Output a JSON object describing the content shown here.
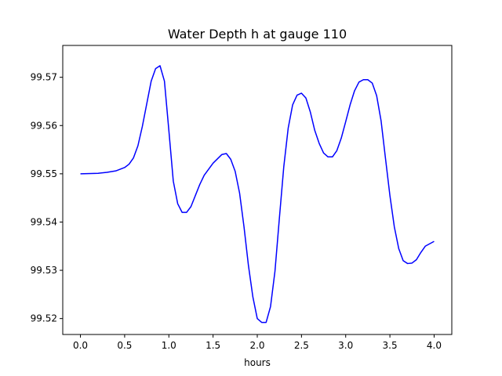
{
  "chart_data": {
    "type": "line",
    "title": "Water Depth h at gauge 110",
    "xlabel": "hours",
    "ylabel": "",
    "xlim": [
      -0.2,
      4.2
    ],
    "ylim": [
      99.5167,
      99.5766
    ],
    "xticks": [
      0.0,
      0.5,
      1.0,
      1.5,
      2.0,
      2.5,
      3.0,
      3.5,
      4.0
    ],
    "xtick_labels": [
      "0.0",
      "0.5",
      "1.0",
      "1.5",
      "2.0",
      "2.5",
      "3.0",
      "3.5",
      "4.0"
    ],
    "yticks": [
      99.52,
      99.53,
      99.54,
      99.55,
      99.56,
      99.57
    ],
    "ytick_labels": [
      "99.52",
      "99.53",
      "99.54",
      "99.55",
      "99.56",
      "99.57"
    ],
    "grid": false,
    "series": [
      {
        "color": "#0000ff",
        "x": [
          0.0,
          0.2,
          0.3,
          0.4,
          0.5,
          0.55,
          0.6,
          0.65,
          0.7,
          0.75,
          0.8,
          0.85,
          0.9,
          0.95,
          1.0,
          1.05,
          1.1,
          1.15,
          1.2,
          1.25,
          1.3,
          1.35,
          1.4,
          1.5,
          1.6,
          1.65,
          1.7,
          1.75,
          1.8,
          1.85,
          1.9,
          1.95,
          2.0,
          2.05,
          2.1,
          2.15,
          2.2,
          2.25,
          2.3,
          2.35,
          2.4,
          2.45,
          2.5,
          2.55,
          2.6,
          2.65,
          2.7,
          2.75,
          2.8,
          2.85,
          2.9,
          2.95,
          3.0,
          3.05,
          3.1,
          3.15,
          3.2,
          3.25,
          3.3,
          3.35,
          3.4,
          3.45,
          3.5,
          3.55,
          3.6,
          3.65,
          3.7,
          3.75,
          3.8,
          3.85,
          3.9,
          4.0
        ],
        "y": [
          99.55,
          99.5501,
          99.5503,
          99.5506,
          99.5513,
          99.552,
          99.5533,
          99.5558,
          99.5598,
          99.5645,
          99.5692,
          99.5718,
          99.5724,
          99.5692,
          99.559,
          99.5485,
          99.5438,
          99.542,
          99.542,
          99.5432,
          99.5455,
          99.5478,
          99.5497,
          99.5522,
          99.554,
          99.5542,
          99.553,
          99.5505,
          99.546,
          99.539,
          99.531,
          99.5245,
          99.52,
          99.5192,
          99.5192,
          99.5225,
          99.5298,
          99.5408,
          99.5515,
          99.5595,
          99.5643,
          99.5663,
          99.5667,
          99.5657,
          99.5628,
          99.559,
          99.5563,
          99.5543,
          99.5535,
          99.5535,
          99.5548,
          99.5574,
          99.5608,
          99.5643,
          99.5672,
          99.569,
          99.5695,
          99.5695,
          99.5688,
          99.5662,
          99.561,
          99.5532,
          99.5455,
          99.539,
          99.5345,
          99.532,
          99.5314,
          99.5315,
          99.5322,
          99.5337,
          99.535,
          99.536
        ]
      }
    ]
  }
}
